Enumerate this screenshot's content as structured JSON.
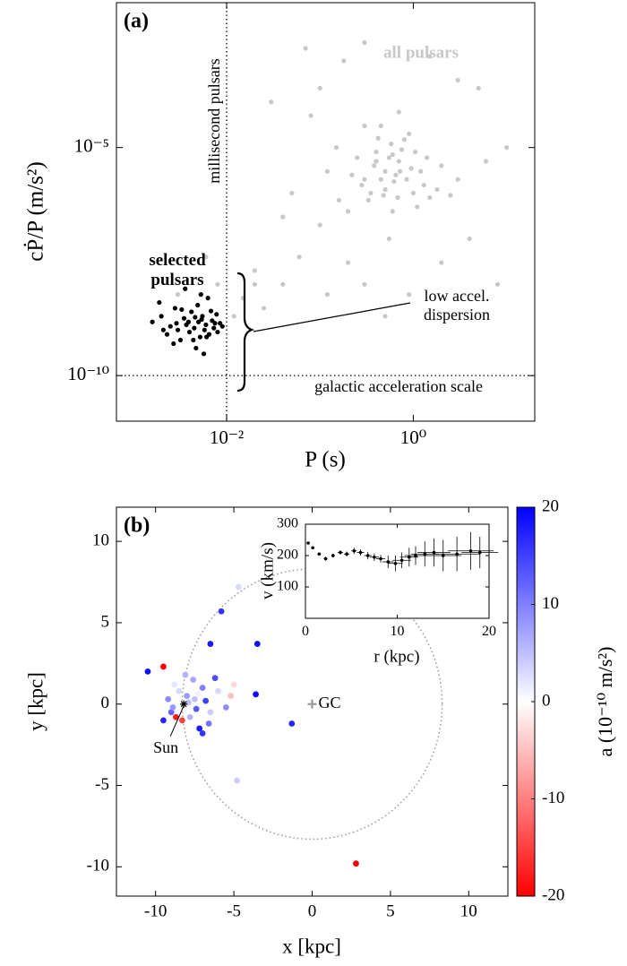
{
  "chart_data": [
    {
      "type": "scatter",
      "panel_label": "(a)",
      "log_x": true,
      "log_y": true,
      "xlim": [
        0.00066,
        20
      ],
      "ylim": [
        1e-11,
        0.015
      ],
      "xticks": [
        {
          "value": 0.01,
          "label": "10⁻²"
        },
        {
          "value": 1,
          "label": "10⁰"
        }
      ],
      "yticks": [
        {
          "value": 1e-10,
          "label": "10⁻¹⁰"
        },
        {
          "value": 1e-05,
          "label": "10⁻⁵"
        }
      ],
      "xlabel": "P (s)",
      "ylabel": "cṖ/P (m/s²)",
      "reference_lines": [
        {
          "axis": "x",
          "value": 0.01,
          "label": "millisecond pulsars"
        },
        {
          "axis": "y",
          "value": 1e-10,
          "label": "galactic acceleration scale"
        }
      ],
      "annotation": "low accel. dispersion",
      "series": [
        {
          "name": "all pulsars",
          "color": "#c8c8c8",
          "x": [
            0.5,
            0.7,
            0.3,
            1.0,
            0.4,
            0.8,
            0.6,
            1.2,
            0.25,
            0.9,
            1.5,
            0.35,
            2,
            0.45,
            0.15,
            0.55,
            1.1,
            0.7,
            3,
            0.2,
            0.65,
            0.75,
            0.5,
            0.95,
            0.4,
            1.3,
            0.6,
            0.85,
            0.3,
            0.1,
            0.08,
            0.05,
            0.04,
            0.03,
            0.02,
            0.015,
            0.025,
            0.04,
            0.06,
            0.1,
            0.12,
            0.2,
            0.3,
            0.5,
            0.9,
            2,
            4,
            6,
            8,
            1.5,
            0.3,
            3,
            0.18,
            0.07,
            5,
            10,
            0.012,
            0.02,
            0.008,
            0.006,
            0.003,
            0.45,
            0.55,
            0.62,
            0.72,
            0.38,
            0.48,
            1.4,
            1.8,
            0.28,
            0.58,
            0.33,
            0.68,
            1.05,
            0.42,
            2.5,
            0.22,
            0.16,
            0.12
          ],
          "values": [
            3e-06,
            5e-06,
            2e-06,
            1e-06,
            8e-06,
            1.5e-05,
            4e-07,
            3e-06,
            6e-06,
            2e-05,
            8e-07,
            1e-06,
            4e-06,
            3e-05,
            1e-05,
            1e-07,
            5e-07,
            6e-05,
            2e-06,
            4e-07,
            2.5e-06,
            9e-06,
            1.2e-06,
            3.5e-06,
            5e-06,
            1.5e-06,
            7e-06,
            2e-06,
            3e-05,
            0.0002,
            5e-05,
            1e-06,
            3e-07,
            0.0001,
            2e-08,
            5e-09,
            3e-09,
            1e-08,
            4e-08,
            2e-07,
            6e-09,
            3e-08,
            1e-08,
            2e-09,
            6e-09,
            3e-08,
            1e-07,
            5e-06,
            1e-08,
            0.001,
            0.002,
            0.0003,
            0.0008,
            0.0015,
            0.0002,
            1e-05,
            2e-09,
            1e-08,
            1e-08,
            4e-08,
            6e-09,
            2e-06,
            6e-06,
            1.8e-06,
            3e-06,
            4e-06,
            9e-07,
            6e-06,
            1.2e-06,
            1.5e-06,
            1.2e-05,
            7e-07,
            8e-07,
            8e-06,
            1.6e-05,
            9e-07,
            2.5e-06,
            7e-07,
            3e-06
          ]
        },
        {
          "name": "selected pulsars",
          "color": "#000000",
          "x": [
            0.0016,
            0.002,
            0.0023,
            0.0025,
            0.0028,
            0.003,
            0.0032,
            0.0035,
            0.0037,
            0.004,
            0.0042,
            0.0045,
            0.0047,
            0.005,
            0.0052,
            0.0055,
            0.0058,
            0.006,
            0.0063,
            0.0065,
            0.007,
            0.0073,
            0.0078,
            0.008,
            0.0085,
            0.009,
            0.0019,
            0.0027,
            0.0033,
            0.0044,
            0.0049,
            0.0054,
            0.0061,
            0.0068,
            0.0075,
            0.0021,
            0.0039,
            0.0057,
            0.0046,
            0.0029,
            0.0053,
            0.0036
          ],
          "values": [
            1.5e-09,
            2e-09,
            8e-10,
            1.2e-09,
            3e-09,
            1e-09,
            6e-10,
            1.8e-09,
            1.3e-09,
            9e-10,
            2.5e-09,
            1.1e-09,
            4e-10,
            1.5e-09,
            7e-10,
            2e-09,
            1e-09,
            1.3e-09,
            5e-09,
            8e-10,
            1.6e-09,
            1.1e-09,
            2.2e-09,
            9e-10,
            1.4e-09,
            1.2e-09,
            4e-09,
            5e-10,
            2.8e-09,
            6e-10,
            3.5e-09,
            1.7e-09,
            7e-10,
            2.6e-09,
            1.4e-09,
            1e-09,
            1.5e-09,
            3e-10,
            1.9e-09,
            1.4e-09,
            6e-09,
            8e-09
          ]
        }
      ]
    },
    {
      "type": "scatter",
      "panel_label": "(b)",
      "xlim": [
        -12.5,
        12.5
      ],
      "ylim": [
        -11.8,
        12.1
      ],
      "xticks": [
        -10,
        -5,
        0,
        5,
        10
      ],
      "yticks": [
        -10,
        -5,
        0,
        5,
        10
      ],
      "xlabel": "x [kpc]",
      "ylabel": "y [kpc]",
      "x": [
        -8,
        -7.5,
        -8.5,
        -7,
        -9,
        -7.8,
        -6.8,
        -8.3,
        -8.7,
        -7.2,
        -6.5,
        -8.8,
        -7.6,
        -9.2,
        -6,
        -5.2,
        -5,
        -7,
        -6.2,
        -8.1,
        -9.5,
        -10.5,
        -9.5,
        -6.5,
        -5.8,
        -4.7,
        -3.5,
        -3.6,
        -1.3,
        -4.8,
        2.8,
        -7.3,
        -6.6,
        -8.9,
        -7.9,
        -5.5,
        -7.4
      ],
      "values": [
        0.5,
        0.3,
        0.8,
        1,
        -0.5,
        -0.8,
        0.2,
        -1,
        -0.8,
        -1.5,
        -0.5,
        1.2,
        1.5,
        0.3,
        0.8,
        0.5,
        1.2,
        -1.8,
        1.6,
        1.8,
        -1,
        2,
        2.3,
        3.7,
        5.7,
        7.2,
        3.7,
        0.6,
        -1.2,
        -4.7,
        -9.8,
        0.6,
        -1.2,
        -0.2,
        0.1,
        -0.2,
        -0.3
      ],
      "color_values": [
        8,
        5,
        3,
        10,
        12,
        6,
        15,
        -15,
        -18,
        18,
        4,
        2,
        7,
        9,
        3,
        -5,
        -3,
        16,
        14,
        6,
        17,
        19,
        -20,
        18,
        16,
        3,
        19,
        19,
        17,
        4,
        -20,
        1,
        11,
        8,
        5,
        9,
        13
      ],
      "colorbar": {
        "label": "a (10⁻¹⁰ m/s²)",
        "lim": [
          -20,
          20
        ],
        "ticks": [
          -20,
          -10,
          0,
          10,
          20
        ],
        "colors": [
          "#ff0000",
          "#ffffff",
          "#0000ff"
        ]
      },
      "circle_radius": 8.3,
      "markers": [
        {
          "label": "GC",
          "x": 0,
          "y": 0
        },
        {
          "label": "Sun",
          "x": -8.2,
          "y": 0
        }
      ]
    },
    {
      "type": "errorbar",
      "color": "#000000",
      "xlim": [
        0,
        20
      ],
      "ylim": [
        0,
        300
      ],
      "xticks": [
        0,
        10,
        20
      ],
      "yticks": [
        100,
        200,
        300
      ],
      "xlabel": "r (kpc)",
      "ylabel": "v (km/s)",
      "x": [
        0.3,
        0.8,
        1.5,
        2.2,
        3,
        3.8,
        4.5,
        5.3,
        6,
        6.8,
        7.5,
        8.2,
        9,
        9.8,
        10.5,
        11.3,
        12,
        13,
        14,
        15,
        16.5,
        18,
        19
      ],
      "values": [
        240,
        225,
        205,
        190,
        200,
        210,
        205,
        215,
        210,
        200,
        195,
        190,
        180,
        175,
        185,
        195,
        200,
        205,
        210,
        200,
        205,
        215,
        210
      ],
      "xerr": [
        0.1,
        0.1,
        0.2,
        0.2,
        0.2,
        0.3,
        0.3,
        0.3,
        0.4,
        0.4,
        0.5,
        0.5,
        0.6,
        0.8,
        1,
        1,
        1.2,
        1.5,
        1.8,
        2,
        2.5,
        2.5,
        2
      ],
      "yerr": [
        3,
        5,
        5,
        6,
        6,
        7,
        8,
        10,
        10,
        12,
        12,
        12,
        20,
        25,
        25,
        30,
        30,
        40,
        45,
        50,
        55,
        60,
        50
      ]
    }
  ]
}
